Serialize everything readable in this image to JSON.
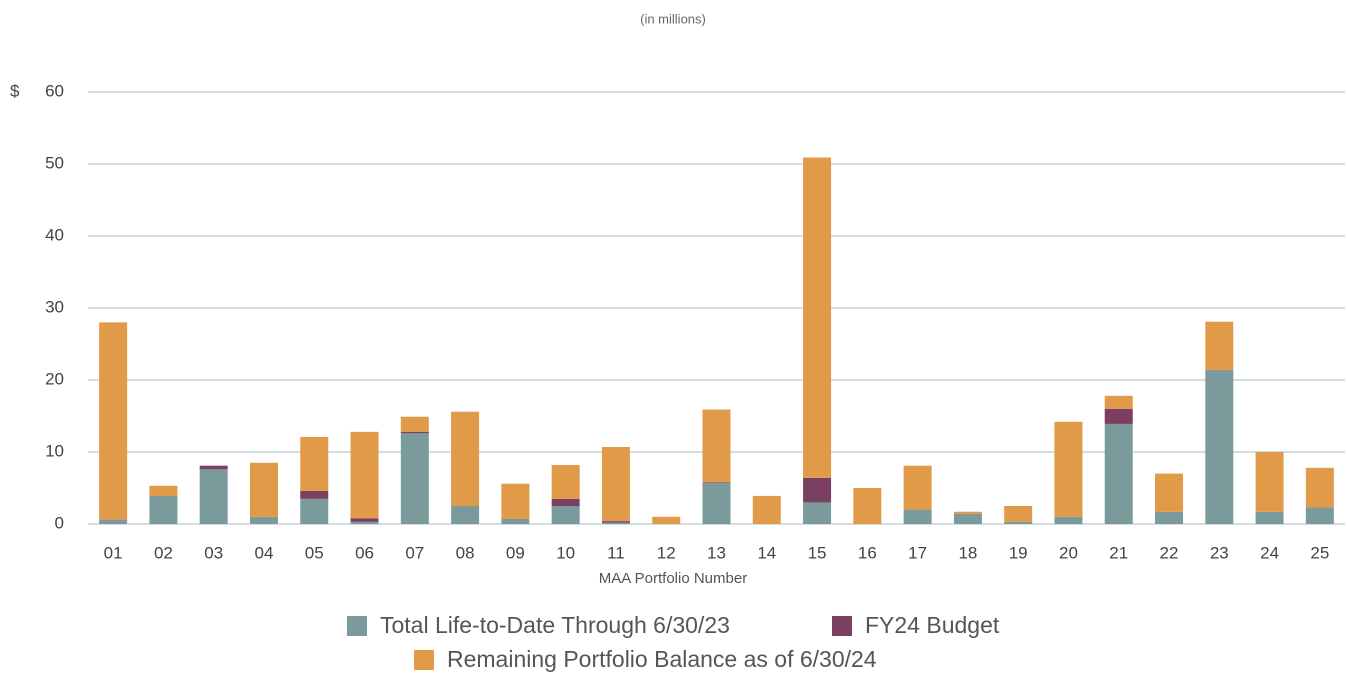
{
  "chart_data": {
    "type": "stacked_bar",
    "subtitle": "(in millions)",
    "x_label": "MAA Portfolio Number",
    "y_unit_label": "$",
    "categories": [
      "01",
      "02",
      "03",
      "04",
      "05",
      "06",
      "07",
      "08",
      "09",
      "10",
      "11",
      "12",
      "13",
      "14",
      "15",
      "16",
      "17",
      "18",
      "19",
      "20",
      "21",
      "22",
      "23",
      "24",
      "25"
    ],
    "series": [
      {
        "name": "Total Life-to-Date Through 6/30/23",
        "color": "#7a9a9c",
        "values": [
          0.6,
          3.9,
          7.6,
          1.0,
          3.5,
          0.3,
          12.6,
          2.5,
          0.7,
          2.5,
          0.2,
          0,
          5.7,
          0,
          3.0,
          0,
          2.0,
          1.4,
          0.3,
          1.0,
          13.9,
          1.7,
          21.4,
          1.7,
          2.3
        ]
      },
      {
        "name": "FY24 Budget",
        "color": "#7b3f62",
        "values": [
          0,
          0,
          0.5,
          0,
          1.1,
          0.5,
          0.2,
          0,
          0,
          1.0,
          0.2,
          0,
          0.1,
          0,
          3.4,
          0,
          0,
          0,
          0,
          0,
          2.1,
          0,
          0,
          0,
          0
        ]
      },
      {
        "name": "Remaining Portfolio Balance as of 6/30/24",
        "color": "#e09a48",
        "values": [
          27.4,
          1.4,
          0,
          7.5,
          7.5,
          12.0,
          2.1,
          13.1,
          4.9,
          4.7,
          10.3,
          1.0,
          10.1,
          3.9,
          44.5,
          5.0,
          6.1,
          0.3,
          2.2,
          13.2,
          1.8,
          5.3,
          6.7,
          8.3,
          5.5
        ]
      }
    ],
    "ylim": [
      0,
      60
    ],
    "yticks": [
      0,
      10,
      20,
      30,
      40,
      50,
      60
    ],
    "grid": true
  }
}
